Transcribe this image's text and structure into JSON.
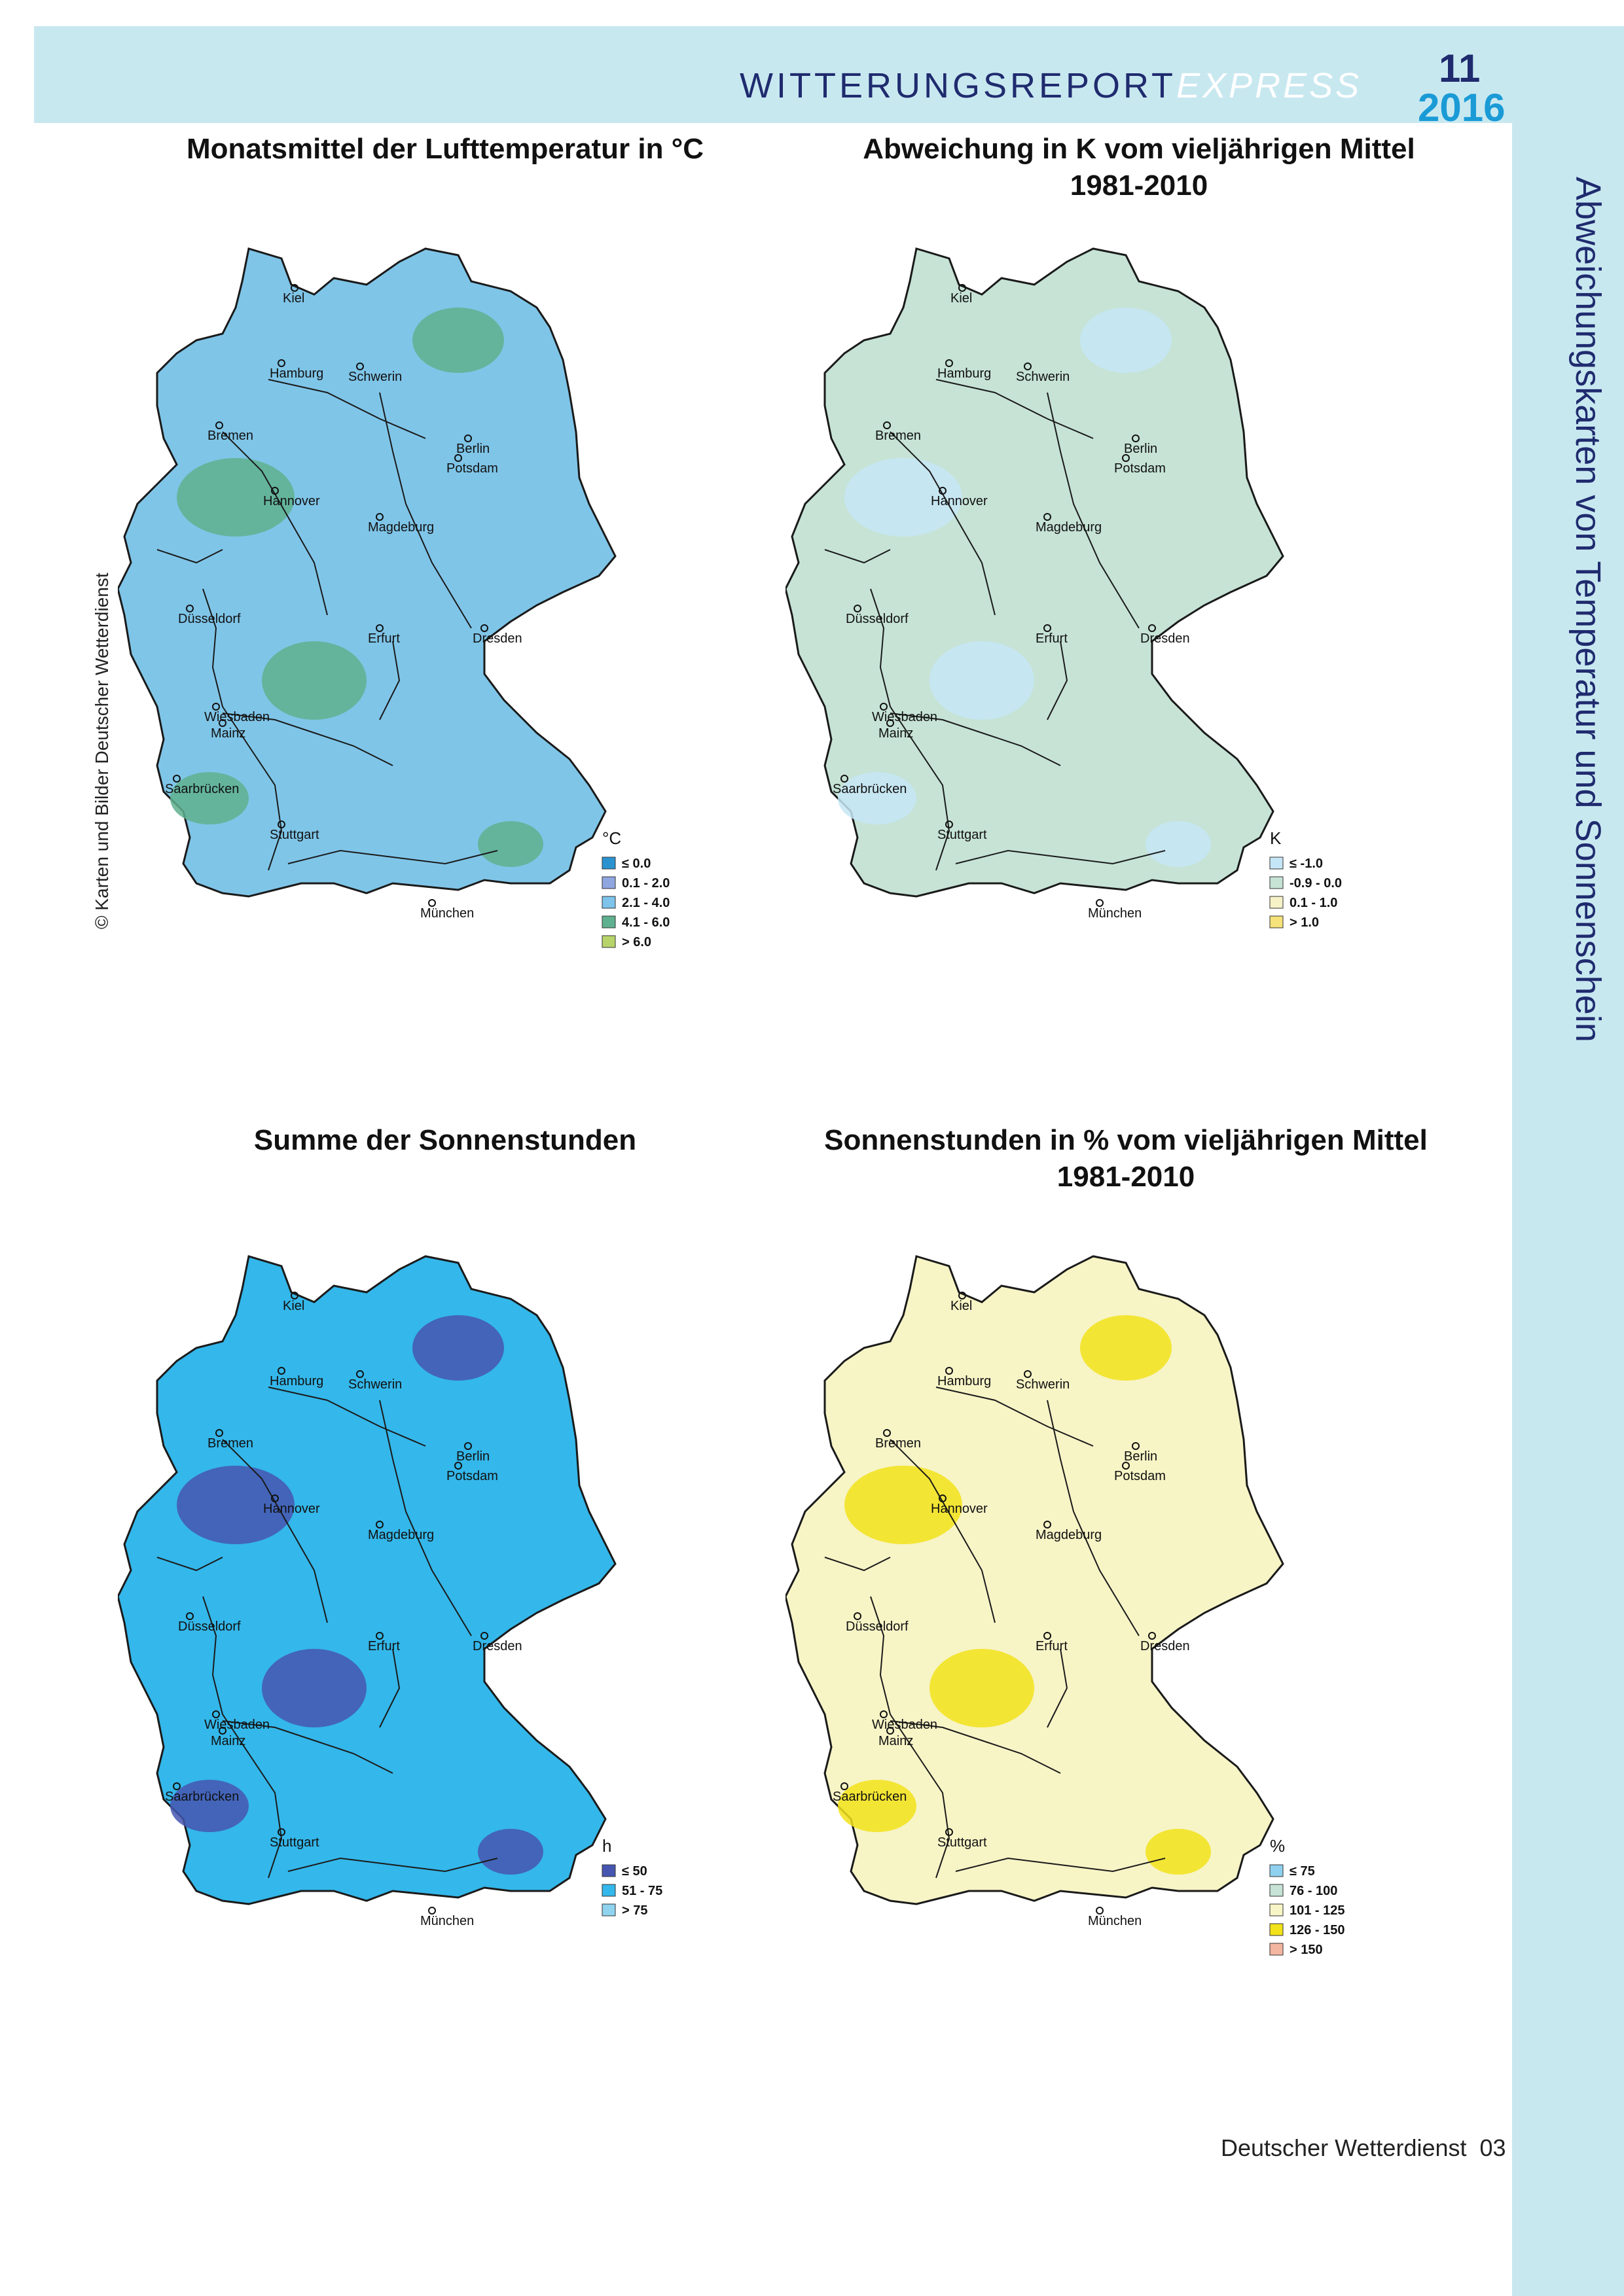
{
  "header": {
    "report_title_main": "WITTERUNGSREPORT",
    "report_title_suffix": "EXPRESS",
    "issue_number": "11",
    "issue_year": "2016"
  },
  "side_title": "Abweichungskarten von Temperatur und Sonnenschein",
  "copyright": "© Karten und Bilder Deutscher Wetterdienst",
  "maps": [
    {
      "title_line1": "Monatsmittel der Lufttemperatur in °C",
      "title_line2": "",
      "legend_unit": "°C",
      "legend": [
        {
          "label": "≤ 0.0",
          "color": "#2a93cf"
        },
        {
          "label": "0.1 - 2.0",
          "color": "#8fa6e0"
        },
        {
          "label": "2.1 - 4.0",
          "color": "#7dc3ea"
        },
        {
          "label": "4.1 - 6.0",
          "color": "#5fb08e"
        },
        {
          "label": "> 6.0",
          "color": "#b7d46a"
        }
      ],
      "fill": "#7fc5e8",
      "accent": "#5fb08e"
    },
    {
      "title_line1": "Abweichung in K vom vieljährigen Mittel",
      "title_line2": "1981-2010",
      "legend_unit": "K",
      "legend": [
        {
          "label": "≤ -1.0",
          "color": "#c5e6f6"
        },
        {
          "label": "-0.9 - 0.0",
          "color": "#c6e3d6"
        },
        {
          "label": "0.1 - 1.0",
          "color": "#f6f1c7"
        },
        {
          "label": "> 1.0",
          "color": "#f5e27a"
        }
      ],
      "fill": "#c6e3d6",
      "accent": "#c5e6f6"
    },
    {
      "title_line1": "Summe der Sonnenstunden",
      "title_line2": "",
      "legend_unit": "h",
      "legend": [
        {
          "label": "≤ 50",
          "color": "#4656b0"
        },
        {
          "label": "51 - 75",
          "color": "#34b7ea"
        },
        {
          "label": "> 75",
          "color": "#8fd3ef"
        }
      ],
      "fill": "#34b7ea",
      "accent": "#4656b0"
    },
    {
      "title_line1": "Sonnenstunden in % vom vieljährigen Mittel",
      "title_line2": "1981-2010",
      "legend_unit": "%",
      "legend": [
        {
          "label": "≤ 75",
          "color": "#8fd0ee"
        },
        {
          "label": "76 - 100",
          "color": "#c6e3d6"
        },
        {
          "label": "101 - 125",
          "color": "#f7f4c6"
        },
        {
          "label": "126 - 150",
          "color": "#f2e21a"
        },
        {
          "label": "> 150",
          "color": "#f3b6a0"
        }
      ],
      "fill": "#f7f4c6",
      "accent": "#f2e21a"
    }
  ],
  "cities": [
    "Kiel",
    "Hamburg",
    "Schwerin",
    "Bremen",
    "Berlin",
    "Potsdam",
    "Hannover",
    "Magdeburg",
    "Düsseldorf",
    "Dresden",
    "Erfurt",
    "Wiesbaden",
    "Mainz",
    "Saarbrücken",
    "Stuttgart",
    "München"
  ],
  "footer": {
    "publisher": "Deutscher Wetterdienst",
    "page_number": "03"
  }
}
